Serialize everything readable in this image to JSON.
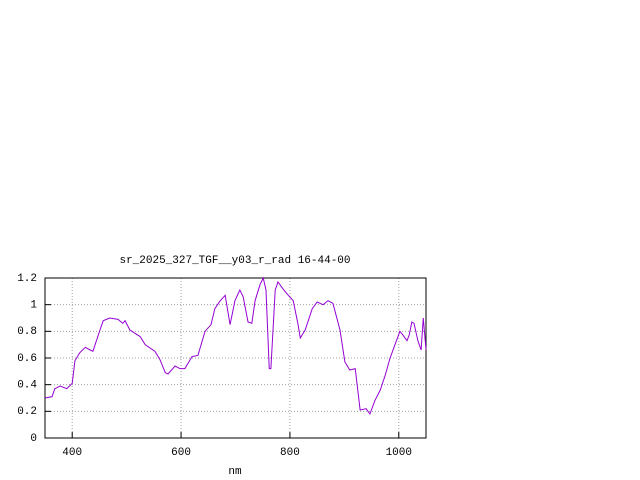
{
  "chart_data": {
    "type": "line",
    "title": "sr_2025_327_TGF__y03_r_rad 16-44-00",
    "x_label": "nm",
    "xlim": [
      350,
      1050
    ],
    "xticks": [
      400,
      600,
      800,
      1000
    ],
    "ylim": [
      0,
      1.2
    ],
    "yticks": [
      0,
      0.2,
      0.4,
      0.6,
      0.8,
      1,
      1.2
    ],
    "grid": true,
    "series": [
      {
        "color": "#9400d3",
        "x": [
          350,
          363,
          368,
          378,
          390,
          400,
          405,
          414,
          424,
          433,
          438,
          451,
          457,
          469,
          484,
          493,
          497,
          506,
          525,
          534,
          552,
          561,
          571,
          576,
          589,
          598,
          607,
          620,
          631,
          644,
          655,
          662,
          672,
          681,
          690,
          699,
          708,
          714,
          723,
          730,
          736,
          745,
          751,
          756,
          762,
          765,
          773,
          778,
          787,
          797,
          806,
          815,
          819,
          828,
          841,
          850,
          861,
          870,
          879,
          892,
          901,
          910,
          920,
          929,
          940,
          947,
          956,
          966,
          975,
          984,
          993,
          1002,
          1008,
          1015,
          1019,
          1024,
          1028,
          1035,
          1041,
          1045,
          1050
        ],
        "values": [
          0.3,
          0.31,
          0.37,
          0.39,
          0.37,
          0.41,
          0.58,
          0.64,
          0.68,
          0.66,
          0.65,
          0.81,
          0.88,
          0.9,
          0.89,
          0.86,
          0.88,
          0.81,
          0.76,
          0.7,
          0.65,
          0.59,
          0.49,
          0.48,
          0.54,
          0.52,
          0.52,
          0.61,
          0.62,
          0.8,
          0.85,
          0.97,
          1.03,
          1.07,
          0.85,
          1.03,
          1.11,
          1.06,
          0.87,
          0.86,
          1.03,
          1.15,
          1.2,
          1.11,
          0.52,
          0.52,
          1.11,
          1.17,
          1.12,
          1.07,
          1.03,
          0.85,
          0.75,
          0.81,
          0.97,
          1.02,
          1.0,
          1.03,
          1.01,
          0.81,
          0.57,
          0.51,
          0.52,
          0.21,
          0.22,
          0.18,
          0.28,
          0.36,
          0.47,
          0.6,
          0.7,
          0.8,
          0.77,
          0.73,
          0.77,
          0.87,
          0.86,
          0.73,
          0.66,
          0.9,
          0.66
        ]
      }
    ]
  }
}
